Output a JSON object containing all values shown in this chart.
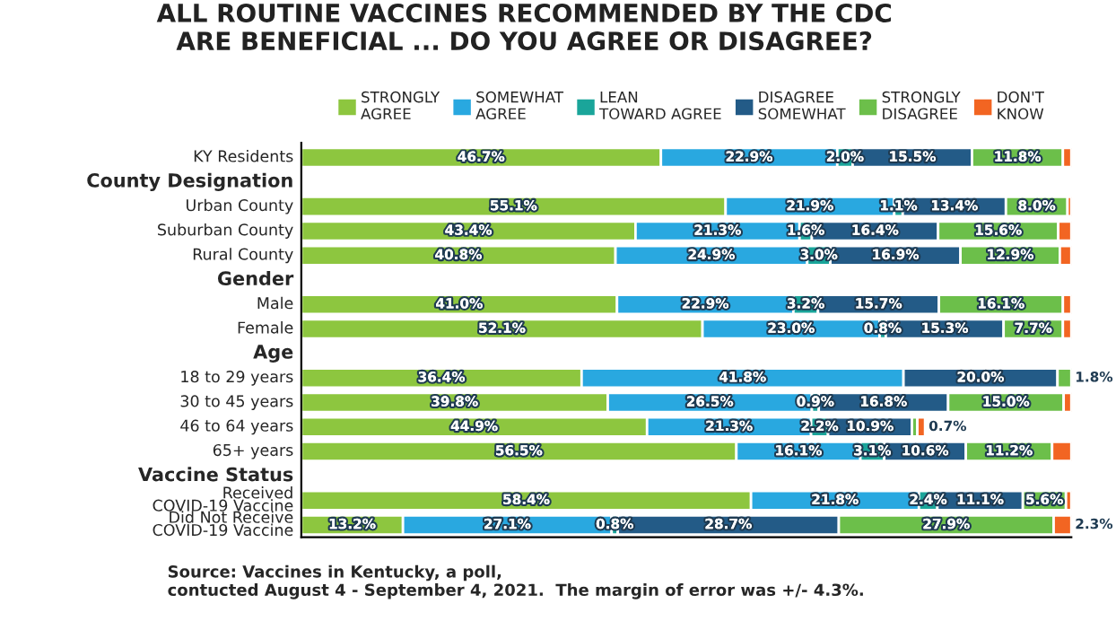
{
  "chart_data": {
    "type": "bar",
    "orientation": "horizontal",
    "stacked": true,
    "title": "ALL ROUTINE VACCINES RECOMMENDED BY THE CDC\nARE BENEFICIAL ... DO YOU AGREE OR DISAGREE?",
    "categories": [
      "KY Residents",
      "County Designation",
      "Urban County",
      "Suburban County",
      "Rural County",
      "Gender",
      "Male",
      "Female",
      "Age",
      "18 to 29 years",
      "30 to 45 years",
      "46 to 64 years",
      "65+ years",
      "Vaccine Status",
      "Received\nCOVID-19 Vaccine",
      "Did Not Receive\nCOVID-19 Vaccine"
    ],
    "xlim": [
      0,
      100
    ],
    "series": [
      {
        "name": "STRONGLY\nAGREE",
        "color": "#8dc63f",
        "values": [
          46.7,
          null,
          55.1,
          43.4,
          40.8,
          null,
          41.0,
          52.1,
          null,
          36.4,
          39.8,
          44.9,
          56.5,
          null,
          58.4,
          13.2
        ],
        "value_labels": [
          "46.7%",
          null,
          "55.1%",
          "43.4%",
          "40.8%",
          null,
          "41.0%",
          "52.1%",
          null,
          "36.4%",
          "39.8%",
          "44.9%",
          "56.5%",
          null,
          "58.4%",
          "13.2%"
        ]
      },
      {
        "name": "SOMEWHAT\nAGREE",
        "color": "#29a8e0",
        "values": [
          22.9,
          null,
          21.9,
          21.3,
          24.9,
          null,
          22.9,
          23.0,
          null,
          41.8,
          26.5,
          21.3,
          16.1,
          null,
          21.8,
          27.1
        ],
        "value_labels": [
          "22.9%",
          null,
          "21.9%",
          "21.3%",
          "24.9%",
          null,
          "22.9%",
          "23.0%",
          null,
          "41.8%",
          "26.5%",
          "21.3%",
          "16.1%",
          null,
          "21.8%",
          "27.1%"
        ]
      },
      {
        "name": "LEAN\nTOWARD AGREE",
        "color": "#1aa59a",
        "values": [
          2.0,
          null,
          1.1,
          1.6,
          3.0,
          null,
          3.2,
          0.8,
          null,
          null,
          0.9,
          2.2,
          3.1,
          null,
          2.4,
          0.8
        ],
        "value_labels": [
          "2.0%",
          null,
          "1.1%",
          "1.6%",
          "3.0%",
          null,
          "3.2%",
          "0.8%",
          null,
          null,
          "0.9%",
          "2.2%",
          "3.1%",
          null,
          "2.4%",
          "0.8%"
        ]
      },
      {
        "name": "DISAGREE\nSOMEWHAT",
        "color": "#235b87",
        "values": [
          15.5,
          null,
          13.4,
          16.4,
          16.9,
          null,
          15.7,
          15.3,
          null,
          20.0,
          16.8,
          10.9,
          10.6,
          null,
          11.1,
          28.7
        ],
        "value_labels": [
          "15.5%",
          null,
          "13.4%",
          "16.4%",
          "16.9%",
          null,
          "15.7%",
          "15.3%",
          null,
          "20.0%",
          "16.8%",
          "10.9%",
          "10.6%",
          null,
          "11.1%",
          "28.7%"
        ]
      },
      {
        "name": "STRONGLY\nDISAGREE",
        "color": "#6cbf4a",
        "values": [
          11.8,
          null,
          8.0,
          15.6,
          12.9,
          null,
          16.1,
          7.7,
          null,
          1.8,
          15.0,
          0.7,
          11.2,
          null,
          5.6,
          27.9
        ],
        "value_labels": [
          "11.8%",
          null,
          "8.0%",
          "15.6%",
          "12.9%",
          null,
          "16.1%",
          "7.7%",
          null,
          "1.8%",
          "15.0%",
          "0.7%",
          "11.2%",
          null,
          "5.6%",
          "27.9%"
        ]
      },
      {
        "name": "DON'T\nKNOW",
        "color": "#f26522",
        "values": [
          1.1,
          null,
          0.5,
          1.7,
          1.5,
          null,
          1.1,
          1.1,
          null,
          null,
          1.0,
          1.0,
          2.5,
          null,
          0.7,
          2.3
        ],
        "value_labels": [
          null,
          null,
          null,
          null,
          null,
          null,
          null,
          null,
          null,
          null,
          null,
          null,
          null,
          null,
          null,
          "2.3%"
        ]
      }
    ],
    "legend": "top",
    "annotations": [
      "Source: Vaccines in Kentucky, a poll,\ncontucted August 4 - September 4, 2021.  The margin of error was +/- 4.3%."
    ]
  }
}
